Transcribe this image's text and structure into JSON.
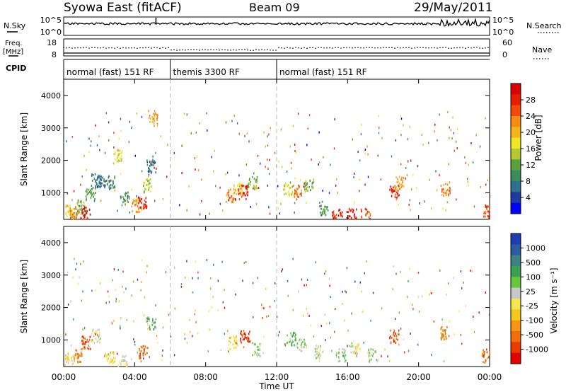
{
  "header": {
    "station": "Syowa East (fitACF)",
    "beam": "Beam 09",
    "date": "29/May/2011"
  },
  "top_panels": {
    "nsky_label": "N.Sky",
    "nsky_ticks": [
      "10^5",
      "10^0"
    ],
    "nsearch_label": "N.Search",
    "nsearch_ticks": [
      "10^5",
      "10^0"
    ],
    "freq_label_1": "Freq.",
    "freq_label_2": "[MHz]",
    "freq_ticks": [
      "18",
      "8"
    ],
    "nave_label": "Nave",
    "nave_ticks": [
      "60",
      "0"
    ],
    "cpid_label": "CPID",
    "cpid_segments": [
      {
        "label": "normal (fast) 151 RF",
        "start_hour": 0,
        "end_hour": 6
      },
      {
        "label": "themis 3300 RF",
        "start_hour": 6,
        "end_hour": 12
      },
      {
        "label": "normal (fast) 151 RF",
        "start_hour": 12,
        "end_hour": 24
      }
    ]
  },
  "axes": {
    "ylabel": "Slant Range [km]",
    "yticks": [
      "1000",
      "2000",
      "3000",
      "4000"
    ],
    "xticks": [
      "00:00",
      "04:00",
      "08:00",
      "12:00",
      "16:00",
      "20:00",
      "00:00"
    ],
    "xlabel": "Time UT"
  },
  "power_colorbar": {
    "label": "Power [dB]",
    "ticks": [
      "4",
      "8",
      "12",
      "16",
      "20",
      "24",
      "28"
    ],
    "colors": [
      "#0000ff",
      "#1e3ca0",
      "#2f6f90",
      "#3c8c5a",
      "#5aa03c",
      "#b4c832",
      "#f0e628",
      "#f5b41e",
      "#f58c14",
      "#f04b0a",
      "#e61e00",
      "#dc0000"
    ]
  },
  "velocity_colorbar": {
    "label": "Velocity [m s⁻¹]",
    "ticks": [
      "1000",
      "500",
      "100",
      "25",
      "-25",
      "-100",
      "-500",
      "-1000"
    ],
    "colors": [
      "#1e3cb4",
      "#2d5aa0",
      "#3c8282",
      "#3ca050",
      "#64c83c",
      "#c8c8c8",
      "#f5e650",
      "#f5c81e",
      "#f59614",
      "#f06e0a",
      "#eb3c00",
      "#e60000"
    ]
  },
  "chart_data": [
    {
      "type": "heatmap",
      "title": "Power [dB]",
      "xlabel": "Time UT",
      "ylabel": "Slant Range [km]",
      "xlim_hours": [
        0,
        24
      ],
      "ylim_km": [
        180,
        4500
      ],
      "clim": [
        0,
        30
      ],
      "cells": [
        {
          "t": 0.3,
          "r": 400,
          "v": 18
        },
        {
          "t": 0.6,
          "r": 300,
          "v": 22
        },
        {
          "t": 0.9,
          "r": 550,
          "v": 12
        },
        {
          "t": 1.2,
          "r": 350,
          "v": 26
        },
        {
          "t": 1.5,
          "r": 900,
          "v": 10
        },
        {
          "t": 1.8,
          "r": 1350,
          "v": 8
        },
        {
          "t": 2.1,
          "r": 1350,
          "v": 6
        },
        {
          "t": 2.6,
          "r": 1300,
          "v": 8
        },
        {
          "t": 3.0,
          "r": 2100,
          "v": 16
        },
        {
          "t": 3.4,
          "r": 800,
          "v": 10
        },
        {
          "t": 4.1,
          "r": 600,
          "v": 20
        },
        {
          "t": 4.4,
          "r": 700,
          "v": 26
        },
        {
          "t": 4.7,
          "r": 1200,
          "v": 14
        },
        {
          "t": 4.9,
          "r": 1800,
          "v": 6
        },
        {
          "t": 5.0,
          "r": 3300,
          "v": 20
        },
        {
          "t": 9.4,
          "r": 900,
          "v": 22
        },
        {
          "t": 9.8,
          "r": 1100,
          "v": 18
        },
        {
          "t": 10.1,
          "r": 1000,
          "v": 26
        },
        {
          "t": 10.6,
          "r": 1300,
          "v": 12
        },
        {
          "t": 12.6,
          "r": 1100,
          "v": 14
        },
        {
          "t": 13.1,
          "r": 1000,
          "v": 22
        },
        {
          "t": 13.8,
          "r": 1200,
          "v": 12
        },
        {
          "t": 14.6,
          "r": 500,
          "v": 10
        },
        {
          "t": 15.4,
          "r": 300,
          "v": 26
        },
        {
          "t": 16.2,
          "r": 280,
          "v": 28
        },
        {
          "t": 17.0,
          "r": 300,
          "v": 24
        },
        {
          "t": 18.6,
          "r": 1000,
          "v": 26
        },
        {
          "t": 18.9,
          "r": 1300,
          "v": 20
        },
        {
          "t": 21.5,
          "r": 1100,
          "v": 22
        },
        {
          "t": 23.9,
          "r": 400,
          "v": 24
        }
      ]
    },
    {
      "type": "heatmap",
      "title": "Velocity [m s⁻¹]",
      "xlabel": "Time UT",
      "ylabel": "Slant Range [km]",
      "xlim_hours": [
        0,
        24
      ],
      "ylim_km": [
        180,
        4500
      ],
      "clim": [
        -1000,
        1000
      ],
      "cells": [
        {
          "t": 0.3,
          "r": 400,
          "v": -100
        },
        {
          "t": 0.8,
          "r": 500,
          "v": -500
        },
        {
          "t": 1.2,
          "r": 900,
          "v": -700
        },
        {
          "t": 1.8,
          "r": 1100,
          "v": 50
        },
        {
          "t": 2.6,
          "r": 400,
          "v": -200
        },
        {
          "t": 3.3,
          "r": 300,
          "v": 0
        },
        {
          "t": 4.5,
          "r": 600,
          "v": -600
        },
        {
          "t": 4.9,
          "r": 1500,
          "v": 300
        },
        {
          "t": 9.5,
          "r": 900,
          "v": -200
        },
        {
          "t": 10.2,
          "r": 1100,
          "v": -800
        },
        {
          "t": 10.8,
          "r": 700,
          "v": 150
        },
        {
          "t": 12.8,
          "r": 1000,
          "v": 300
        },
        {
          "t": 13.4,
          "r": 800,
          "v": 150
        },
        {
          "t": 14.4,
          "r": 600,
          "v": 120
        },
        {
          "t": 15.6,
          "r": 500,
          "v": 200
        },
        {
          "t": 16.4,
          "r": 700,
          "v": 80
        },
        {
          "t": 17.4,
          "r": 500,
          "v": 120
        },
        {
          "t": 18.6,
          "r": 1100,
          "v": -700
        },
        {
          "t": 21.5,
          "r": 1200,
          "v": -500
        },
        {
          "t": 23.8,
          "r": 500,
          "v": -600
        }
      ]
    }
  ]
}
